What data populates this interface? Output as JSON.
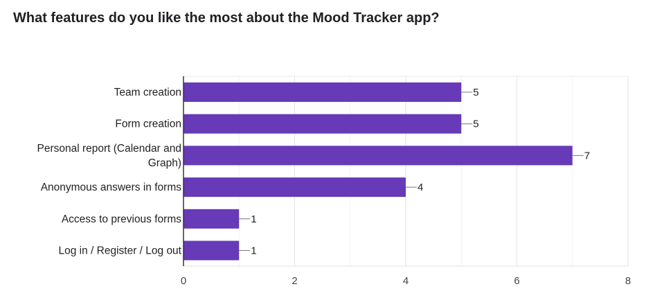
{
  "title": "What features do you like the most about the Mood Tracker app?",
  "colors": {
    "bar": "#673ab7",
    "gridline": "#e6e6e6",
    "axis": "#333333",
    "connector": "#777777"
  },
  "chart_data": {
    "type": "bar",
    "orientation": "horizontal",
    "title": "What features do you like the most about the Mood Tracker app?",
    "categories": [
      [
        "Team creation"
      ],
      [
        "Form creation"
      ],
      [
        "Personal report (Calendar and",
        "Graph)"
      ],
      [
        "Anonymous answers in forms"
      ],
      [
        "Access to previous forms"
      ],
      [
        "Log in / Register / Log out"
      ]
    ],
    "values": [
      5,
      5,
      7,
      4,
      1,
      1
    ],
    "xlim": [
      0,
      8
    ],
    "xticks": [
      0,
      2,
      4,
      6,
      8
    ],
    "grid": true,
    "data_labels": true
  }
}
